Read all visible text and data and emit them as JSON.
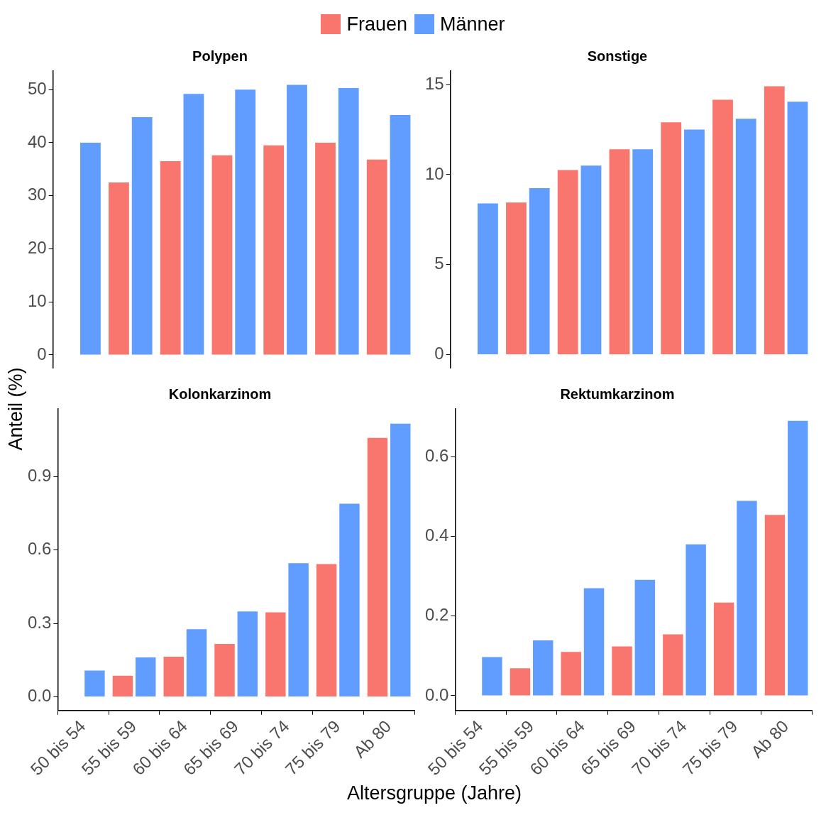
{
  "chart_data": [
    {
      "type": "bar",
      "title": "Polypen",
      "xlabel": "Altersgruppe (Jahre)",
      "legend": "top",
      "tick_labels": "y",
      "grid": false,
      "categories": [
        "50 bis 54",
        "55 bis 59",
        "60 bis 64",
        "65 bis 69",
        "70 bis 74",
        "75 bis 79",
        "Ab 80"
      ],
      "series": [
        {
          "name": "Frauen",
          "color": "#f8766d",
          "values": [
            null,
            32.5,
            36.5,
            37.6,
            39.5,
            40.0,
            36.8
          ]
        },
        {
          "name": "Männer",
          "color": "#619cff",
          "values": [
            40.0,
            44.8,
            49.2,
            50.0,
            50.9,
            50.3,
            45.2
          ]
        }
      ],
      "ylim": [
        -2.5,
        53.5
      ],
      "yticks": [
        0,
        10,
        20,
        30,
        40,
        50
      ]
    },
    {
      "type": "bar",
      "title": "Sonstige",
      "tick_labels": "y",
      "grid": false,
      "categories": [
        "50 bis 54",
        "55 bis 59",
        "60 bis 64",
        "65 bis 69",
        "70 bis 74",
        "75 bis 79",
        "Ab 80"
      ],
      "series": [
        {
          "name": "Frauen",
          "color": "#f8766d",
          "values": [
            null,
            8.45,
            10.25,
            11.4,
            12.9,
            14.15,
            14.9
          ]
        },
        {
          "name": "Männer",
          "color": "#619cff",
          "values": [
            8.4,
            9.25,
            10.5,
            11.4,
            12.5,
            13.1,
            14.05
          ]
        }
      ],
      "ylim": [
        -0.75,
        15.75
      ],
      "yticks": [
        0,
        5,
        10,
        15
      ]
    },
    {
      "type": "bar",
      "title": "Kolonkarzinom",
      "ylabel": "Anteil (%)",
      "grid": false,
      "categories": [
        "50 bis 54",
        "55 bis 59",
        "60 bis 64",
        "65 bis 69",
        "70 bis 74",
        "75 bis 79",
        "Ab 80"
      ],
      "series": [
        {
          "name": "Frauen",
          "color": "#f8766d",
          "values": [
            null,
            0.086,
            0.164,
            0.216,
            0.345,
            0.542,
            1.058
          ]
        },
        {
          "name": "Männer",
          "color": "#619cff",
          "values": [
            0.107,
            0.161,
            0.276,
            0.349,
            0.546,
            0.789,
            1.116
          ]
        }
      ],
      "ylim": [
        -0.056,
        1.176
      ],
      "yticks": [
        {
          "value": 0,
          "label": "0.0"
        },
        0.3,
        0.6,
        0.9
      ]
    },
    {
      "type": "bar",
      "title": "Rektumkarzinom",
      "grid": false,
      "categories": [
        "50 bis 54",
        "55 bis 59",
        "60 bis 64",
        "65 bis 69",
        "70 bis 74",
        "75 bis 79",
        "Ab 80"
      ],
      "series": [
        {
          "name": "Frauen",
          "color": "#f8766d",
          "values": [
            null,
            0.069,
            0.11,
            0.124,
            0.154,
            0.234,
            0.454
          ]
        },
        {
          "name": "Männer",
          "color": "#619cff",
          "values": [
            0.097,
            0.139,
            0.27,
            0.291,
            0.38,
            0.489,
            0.69
          ]
        }
      ],
      "ylim": [
        -0.037,
        0.72
      ],
      "yticks": [
        {
          "value": 0,
          "label": "0.0"
        },
        0.2,
        0.4,
        0.6
      ]
    }
  ]
}
